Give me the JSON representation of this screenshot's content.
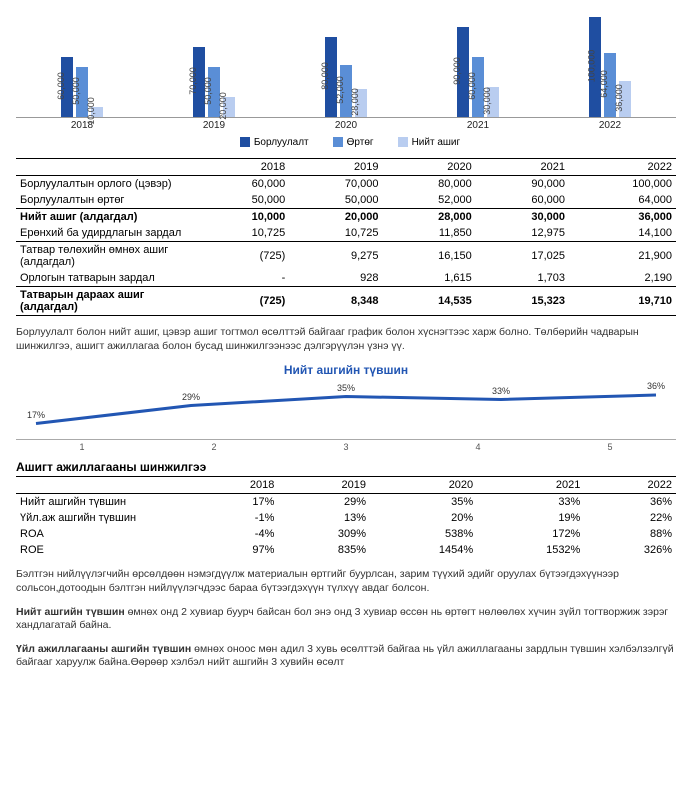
{
  "colors": {
    "series1": "#1f4ea1",
    "series2": "#5a8ed6",
    "series3": "#b9cdf0",
    "line": "#2256b3"
  },
  "barChart": {
    "years": [
      "2018",
      "2019",
      "2020",
      "2021",
      "2022"
    ],
    "legend": [
      "Борлуулалт",
      "Өртөг",
      "Нийт ашиг"
    ],
    "maxVal": 100000,
    "labels": [
      [
        "60,000",
        "50,000",
        "10,000"
      ],
      [
        "70,000",
        "50,000",
        "20,000"
      ],
      [
        "80,000",
        "52,000",
        "28,000"
      ],
      [
        "90,000",
        "60,000",
        "30,000"
      ],
      [
        "100,000",
        "64,000",
        "36,000"
      ]
    ],
    "vals": [
      [
        60000,
        50000,
        10000
      ],
      [
        70000,
        50000,
        20000
      ],
      [
        80000,
        52000,
        28000
      ],
      [
        90000,
        60000,
        30000
      ],
      [
        100000,
        64000,
        36000
      ]
    ]
  },
  "table1": {
    "header": [
      "",
      "2018",
      "2019",
      "2020",
      "2021",
      "2022"
    ],
    "rows": [
      {
        "cells": [
          "Борлуулалтын орлого (цэвэр)",
          "60,000",
          "70,000",
          "80,000",
          "90,000",
          "100,000"
        ]
      },
      {
        "cells": [
          "Борлуулалтын өртөг",
          "50,000",
          "50,000",
          "52,000",
          "60,000",
          "64,000"
        ],
        "uline": true
      },
      {
        "cells": [
          "Нийт ашиг (алдагдал)",
          "10,000",
          "20,000",
          "28,000",
          "30,000",
          "36,000"
        ],
        "bold": true
      },
      {
        "cells": [
          "Ерөнхий ба удирдлагын зардал",
          "10,725",
          "10,725",
          "11,850",
          "12,975",
          "14,100"
        ],
        "uline": true
      },
      {
        "cells": [
          "Татвар төлөхийн өмнөх ашиг (алдагдал)",
          "(725)",
          "9,275",
          "16,150",
          "17,025",
          "21,900"
        ]
      },
      {
        "cells": [
          "Орлогын татварын зардал",
          "-",
          "928",
          "1,615",
          "1,703",
          "2,190"
        ],
        "uline": true
      },
      {
        "cells": [
          "Татварын дараах ашиг (алдагдал)",
          "(725)",
          "8,348",
          "14,535",
          "15,323",
          "19,710"
        ],
        "bold": true,
        "uline": true
      }
    ]
  },
  "para1": "Борлуулалт болон нийт ашиг, цэвэр ашиг тогтмол өсөлттэй байгааг график болон хүснэгтээс харж болно. Төлбөрийн чадварын шинжилгээ, ашигт ажиллагаа болон бусад шинжилгээнээс дэлгэрүүлэн үзнэ үү.",
  "lineChart": {
    "title": "Нийт ашгийн түвшин",
    "xLabels": [
      "1",
      "2",
      "3",
      "4",
      "5"
    ],
    "points": [
      {
        "label": "17%",
        "v": 17
      },
      {
        "label": "29%",
        "v": 29
      },
      {
        "label": "35%",
        "v": 35
      },
      {
        "label": "33%",
        "v": 33
      },
      {
        "label": "36%",
        "v": 36
      }
    ],
    "ylim": [
      10,
      40
    ]
  },
  "section2Title": "Ашигт ажиллагааны шинжилгээ",
  "table2": {
    "header": [
      "",
      "2018",
      "2019",
      "2020",
      "2021",
      "2022"
    ],
    "rows": [
      [
        "Нийт ашгийн түвшин",
        "17%",
        "29%",
        "35%",
        "33%",
        "36%"
      ],
      [
        "Үйл.аж ашгийн түвшин",
        "-1%",
        "13%",
        "20%",
        "19%",
        "22%"
      ],
      [
        "ROA",
        "-4%",
        "309%",
        "538%",
        "172%",
        "88%"
      ],
      [
        "ROE",
        "97%",
        "835%",
        "1454%",
        "1532%",
        "326%"
      ]
    ]
  },
  "para2": "Бэлтгэн нийлүүлэгчийн өрсөлдөөн нэмэгдүүлж материалын өртгийг буурлсан, зарим түүхий эдийг оруулах бүтээгдэхүүнээр сольсон,дотоодын бэлтгэн нийлүүлэгчдээс бараа бүтээгдэхүүн түлхүү авдаг болсон.",
  "para3": {
    "bold": "Нийт ашгийн түвшин",
    "rest": " өмнөх онд 2 хувиар буурч байсан бол энэ онд 3 хувиар өссөн нь өртөгт нөлөөлөх хүчин зүйл тогтворжиж зэрэг хандлагатай байна."
  },
  "para4": {
    "bold": "Үйл ажиллагааны ашгийн түвшин",
    "rest": " өмнөх оноос мөн адил 3 хувь өсөлттэй байгаа нь үйл ажиллагааны зардлын түвшин хэлбэлзэлгүй байгааг харуулж байна.Өөрөөр хэлбэл нийт ашгийн 3 хувийн өсөлт"
  }
}
